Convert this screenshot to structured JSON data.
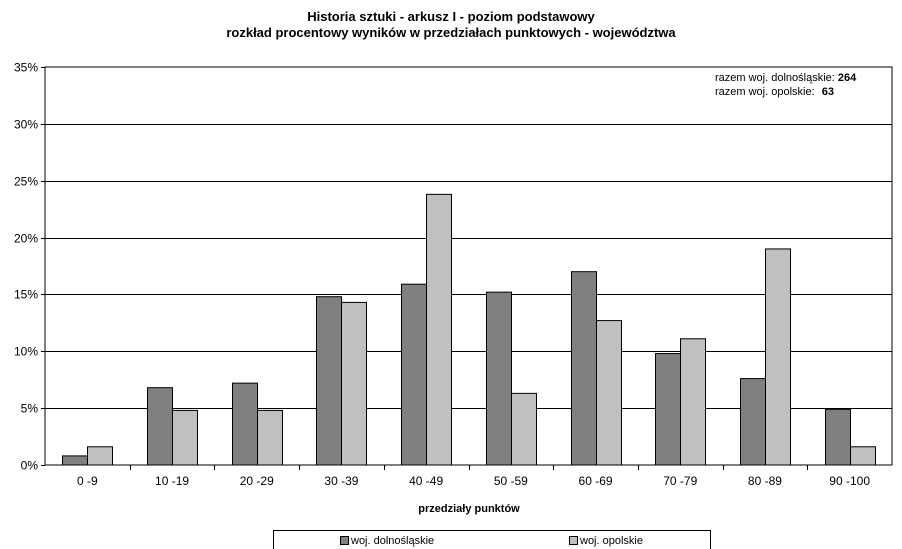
{
  "chart_data": {
    "type": "bar",
    "title": "Historia sztuki - arkusz I - poziom podstawowy",
    "subtitle": "rozkład procentowy wyników w przedziałach punktowych - województwa",
    "xlabel": "przedziały punktów",
    "ylabel": "",
    "ylim": [
      0,
      35
    ],
    "yticks": [
      "0%",
      "5%",
      "10%",
      "15%",
      "20%",
      "25%",
      "30%",
      "35%"
    ],
    "grid": true,
    "legend_position": "bottom",
    "categories": [
      "0 -9",
      "10 -19",
      "20 -29",
      "30 -39",
      "40 -49",
      "50 -59",
      "60 -69",
      "70 -79",
      "80 -89",
      "90 -100"
    ],
    "series": [
      {
        "name": "woj. dolnośląskie",
        "color": "#808080",
        "values": [
          0.8,
          6.8,
          7.2,
          14.8,
          15.9,
          15.2,
          17.0,
          9.8,
          7.6,
          4.9
        ]
      },
      {
        "name": "woj. opolskie",
        "color": "#c0c0c0",
        "values": [
          1.6,
          4.8,
          4.8,
          14.3,
          23.8,
          6.3,
          12.7,
          11.1,
          19.0,
          1.6
        ]
      }
    ],
    "totals": [
      {
        "label": "razem woj. dolnośląskie:",
        "value": "264"
      },
      {
        "label": "razem woj. opolskie:",
        "value": "63"
      }
    ]
  }
}
